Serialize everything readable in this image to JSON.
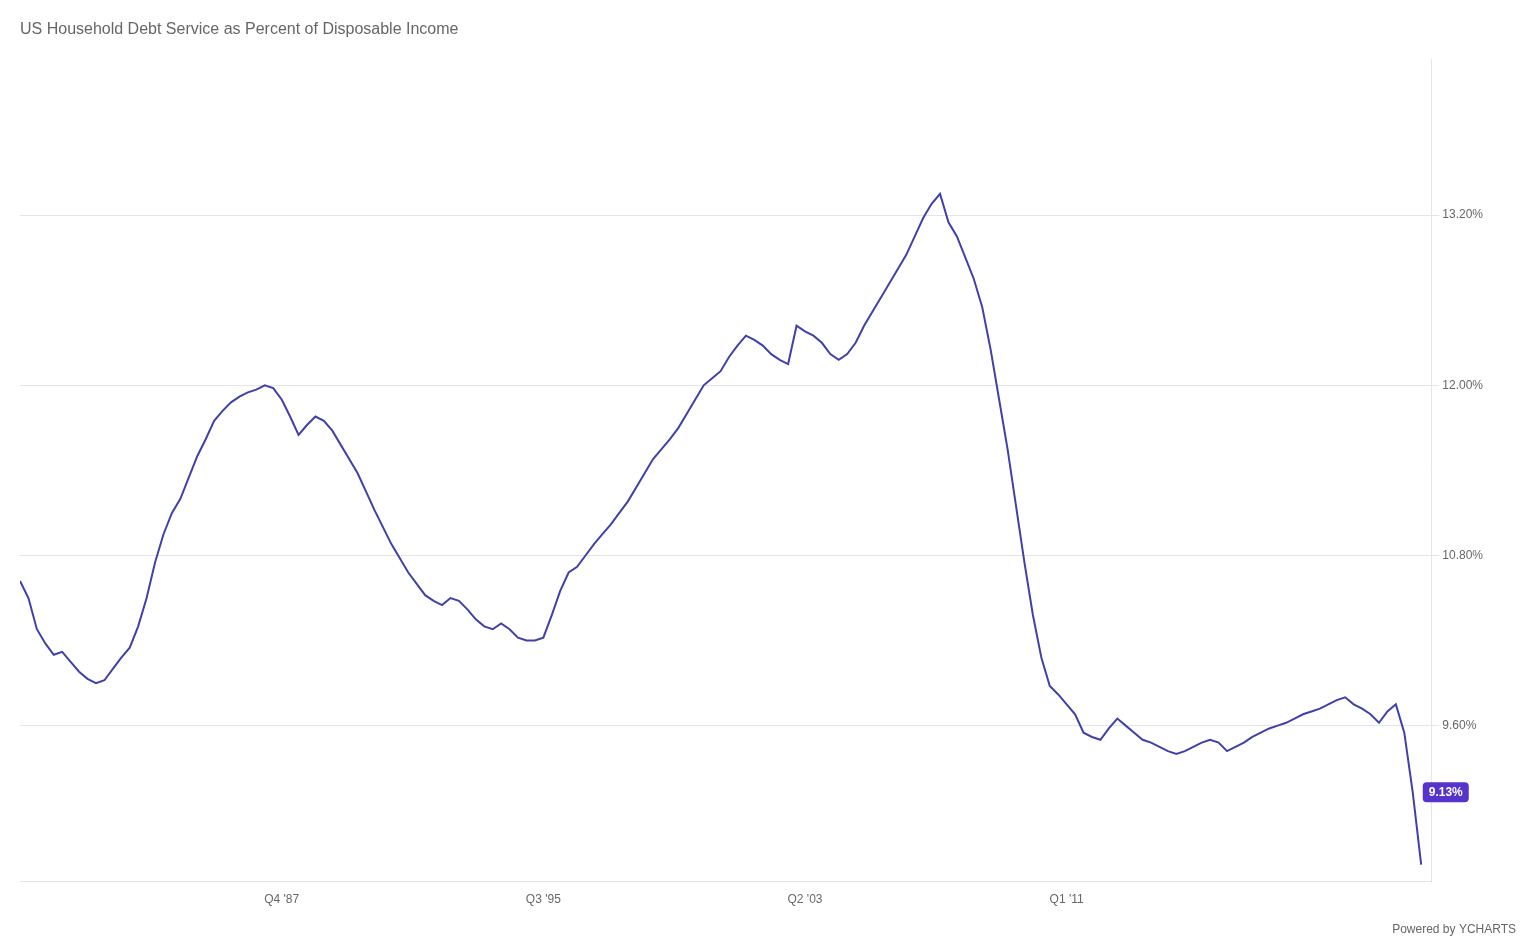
{
  "chart_data": {
    "type": "line",
    "title": "US Household Debt Service as Percent of Disposable Income",
    "color": "#4040aa",
    "grid": "y",
    "x": [
      1980.0,
      1980.25,
      1980.5,
      1980.75,
      1981.0,
      1981.25,
      1981.5,
      1981.75,
      1982.0,
      1982.25,
      1982.5,
      1982.75,
      1983.0,
      1983.25,
      1983.5,
      1983.75,
      1984.0,
      1984.25,
      1984.5,
      1984.75,
      1985.0,
      1985.25,
      1985.5,
      1985.75,
      1986.0,
      1986.25,
      1986.5,
      1986.75,
      1987.0,
      1987.25,
      1987.5,
      1987.75,
      1988.0,
      1988.25,
      1988.5,
      1988.75,
      1989.0,
      1989.25,
      1989.5,
      1989.75,
      1990.0,
      1990.25,
      1990.5,
      1990.75,
      1991.0,
      1991.25,
      1991.5,
      1991.75,
      1992.0,
      1992.25,
      1992.5,
      1992.75,
      1993.0,
      1993.25,
      1993.5,
      1993.75,
      1994.0,
      1994.25,
      1994.5,
      1994.75,
      1995.0,
      1995.25,
      1995.5,
      1995.75,
      1996.0,
      1996.25,
      1996.5,
      1996.75,
      1997.0,
      1997.25,
      1997.5,
      1997.75,
      1998.0,
      1998.25,
      1998.5,
      1998.75,
      1999.0,
      1999.25,
      1999.5,
      1999.75,
      2000.0,
      2000.25,
      2000.5,
      2000.75,
      2001.0,
      2001.25,
      2001.5,
      2001.75,
      2002.0,
      2002.25,
      2002.5,
      2002.75,
      2003.0,
      2003.25,
      2003.5,
      2003.75,
      2004.0,
      2004.25,
      2004.5,
      2004.75,
      2005.0,
      2005.25,
      2005.5,
      2005.75,
      2006.0,
      2006.25,
      2006.5,
      2006.75,
      2007.0,
      2007.25,
      2007.5,
      2007.75,
      2008.0,
      2008.25,
      2008.5,
      2008.75,
      2009.0,
      2009.25,
      2009.5,
      2009.75,
      2010.0,
      2010.25,
      2010.5,
      2010.75,
      2011.0,
      2011.25,
      2011.5,
      2011.75,
      2012.0,
      2012.25,
      2012.5,
      2012.75,
      2013.0,
      2013.25,
      2013.5,
      2013.75,
      2014.0,
      2014.25,
      2014.5,
      2014.75,
      2015.0,
      2015.25,
      2015.5,
      2015.75,
      2016.0,
      2016.25,
      2016.5,
      2016.75,
      2017.0,
      2017.25,
      2017.5,
      2017.75,
      2018.0,
      2018.25,
      2018.5,
      2018.75,
      2019.0,
      2019.25,
      2019.5,
      2019.75,
      2020.0,
      2020.25,
      2020.5,
      2020.75,
      2021.0,
      2021.25,
      2021.5
    ],
    "values": [
      10.62,
      10.5,
      10.28,
      10.18,
      10.1,
      10.12,
      10.05,
      9.98,
      9.93,
      9.9,
      9.92,
      10.0,
      10.08,
      10.15,
      10.3,
      10.5,
      10.75,
      10.95,
      11.1,
      11.2,
      11.35,
      11.5,
      11.62,
      11.75,
      11.82,
      11.88,
      11.92,
      11.95,
      11.97,
      12.0,
      11.98,
      11.9,
      11.78,
      11.65,
      11.72,
      11.78,
      11.75,
      11.68,
      11.58,
      11.48,
      11.38,
      11.25,
      11.12,
      11.0,
      10.88,
      10.78,
      10.68,
      10.6,
      10.52,
      10.48,
      10.45,
      10.5,
      10.48,
      10.42,
      10.35,
      10.3,
      10.28,
      10.32,
      10.28,
      10.22,
      10.2,
      10.2,
      10.22,
      10.38,
      10.55,
      10.68,
      10.72,
      10.8,
      10.88,
      10.95,
      11.02,
      11.1,
      11.18,
      11.28,
      11.38,
      11.48,
      11.55,
      11.62,
      11.7,
      11.8,
      11.9,
      12.0,
      12.05,
      12.1,
      12.2,
      12.28,
      12.35,
      12.32,
      12.28,
      12.22,
      12.18,
      12.15,
      12.42,
      12.38,
      12.35,
      12.3,
      12.22,
      12.18,
      12.22,
      12.3,
      12.42,
      12.52,
      12.62,
      12.72,
      12.82,
      12.92,
      13.05,
      13.18,
      13.28,
      13.35,
      13.15,
      13.05,
      12.9,
      12.75,
      12.55,
      12.25,
      11.9,
      11.55,
      11.15,
      10.75,
      10.38,
      10.08,
      9.88,
      9.82,
      9.75,
      9.68,
      9.55,
      9.52,
      9.5,
      9.58,
      9.65,
      9.6,
      9.55,
      9.5,
      9.48,
      9.45,
      9.42,
      9.4,
      9.42,
      9.45,
      9.48,
      9.5,
      9.48,
      9.42,
      9.45,
      9.48,
      9.52,
      9.55,
      9.58,
      9.6,
      9.62,
      9.65,
      9.68,
      9.7,
      9.72,
      9.75,
      9.78,
      9.8,
      9.75,
      9.72,
      9.68,
      9.62,
      9.7,
      9.75,
      9.55,
      9.13,
      8.62
    ],
    "xlim": [
      1980.0,
      2021.8
    ],
    "xticks": [
      {
        "value": 1987.75,
        "label": "Q4 '87"
      },
      {
        "value": 1995.5,
        "label": "Q3 '95"
      },
      {
        "value": 2003.25,
        "label": "Q2 '03"
      },
      {
        "value": 2011.0,
        "label": "Q1 '11"
      }
    ],
    "ylim": [
      8.5,
      14.3
    ],
    "yticks": [
      {
        "value": 9.6,
        "label": "9.60%"
      },
      {
        "value": 10.8,
        "label": "10.80%"
      },
      {
        "value": 12.0,
        "label": "12.00%"
      },
      {
        "value": 13.2,
        "label": "13.20%"
      }
    ],
    "annotations": [
      {
        "text": "9.13%",
        "x": 2021.25,
        "y": 9.13
      },
      {
        "text": "Powered by YCHARTS"
      }
    ]
  }
}
